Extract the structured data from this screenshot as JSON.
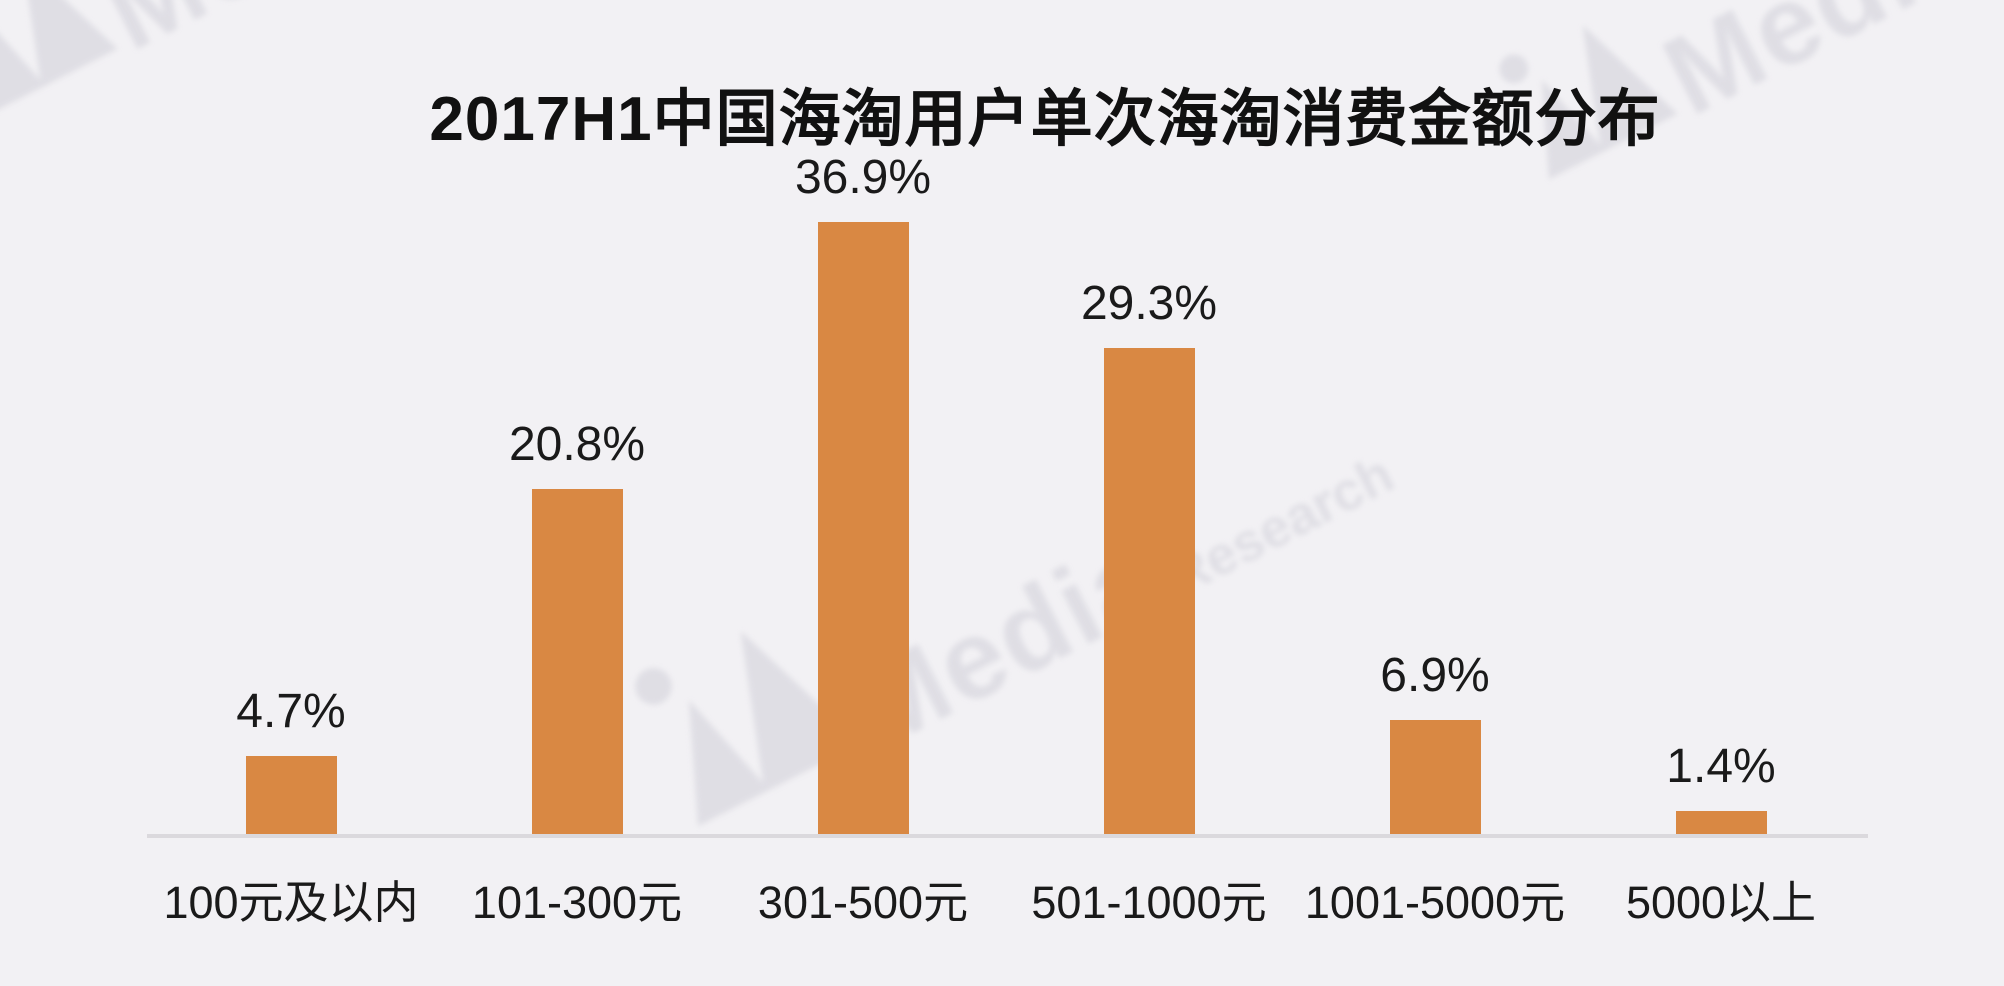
{
  "title": "2017H1中国海淘用户单次海淘消费金额分布",
  "watermark": {
    "brand": "Media",
    "brand_secondary": "Research",
    "color": "#dcdbe2"
  },
  "colors": {
    "background": "#f2f1f4",
    "bar": "#d98843",
    "axis_line": "#dbd9dd",
    "text": "#1a1a1a"
  },
  "chart_data": {
    "type": "bar",
    "title": "2017H1中国海淘用户单次海淘消费金额分布",
    "categories": [
      "100元及以内",
      "101-300元",
      "301-500元",
      "501-1000元",
      "1001-5000元",
      "5000以上"
    ],
    "values": [
      4.7,
      20.8,
      36.9,
      29.3,
      6.9,
      1.4
    ],
    "value_labels": [
      "4.7%",
      "20.8%",
      "36.9%",
      "29.3%",
      "6.9%",
      "1.4%"
    ],
    "xlabel": "",
    "ylabel": "",
    "ylim": [
      0,
      40
    ],
    "grid": false,
    "legend": false,
    "bar_color": "#d98843",
    "value_labels_position": "above-bars",
    "y_axis_visible": false,
    "x_axis_visible": true
  }
}
